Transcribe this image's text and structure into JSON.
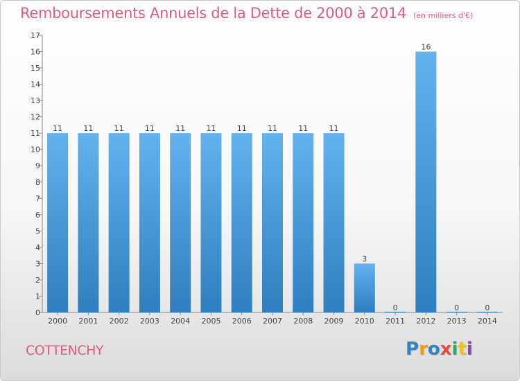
{
  "chart_data": {
    "type": "bar",
    "title": "Remboursements Annuels de la Dette de 2000 à 2014",
    "unit_note": "(en milliers d'€)",
    "categories": [
      "2000",
      "2001",
      "2002",
      "2003",
      "2004",
      "2005",
      "2006",
      "2007",
      "2008",
      "2009",
      "2010",
      "2011",
      "2012",
      "2013",
      "2014"
    ],
    "values": [
      11,
      11,
      11,
      11,
      11,
      11,
      11,
      11,
      11,
      11,
      3,
      0,
      16,
      0,
      0
    ],
    "ylim": [
      0,
      17
    ],
    "yticks": [
      0,
      1,
      2,
      3,
      4,
      5,
      6,
      7,
      8,
      9,
      10,
      11,
      12,
      13,
      14,
      15,
      16,
      17
    ],
    "grid": false,
    "bar_color_top": "#62b2ee",
    "bar_color_bottom": "#2f7fc0"
  },
  "footer": {
    "city": "COTTENCHY",
    "logo": [
      "P",
      "r",
      "o",
      "x",
      "i",
      "t",
      "i"
    ]
  }
}
